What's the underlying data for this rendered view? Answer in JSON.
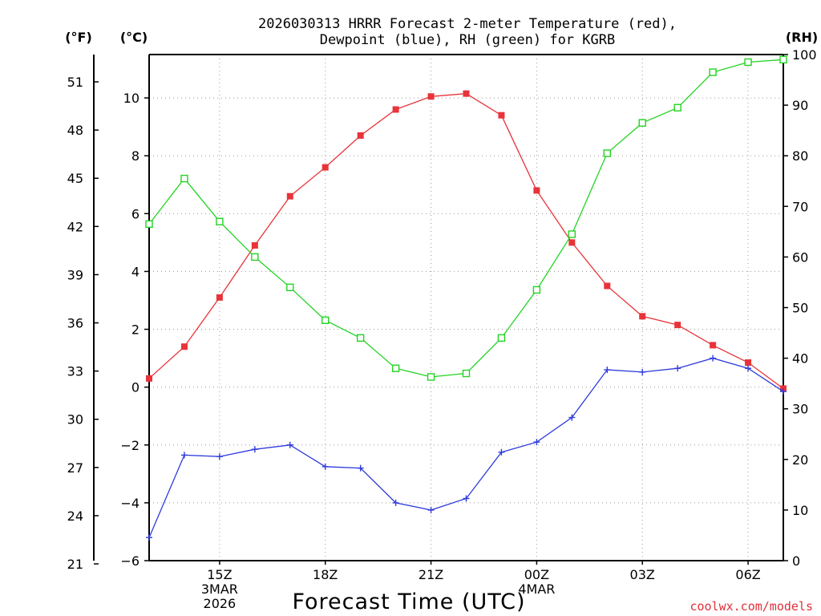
{
  "chart_data": {
    "type": "line",
    "title_lines": [
      "2026030313 HRRR Forecast 2-meter Temperature (red),",
      "Dewpoint (blue), RH (green) for KGRB"
    ],
    "xlabel": "Forecast Time (UTC)",
    "credit": "coolwx.com/models",
    "units": {
      "fahrenheit": "(°F)",
      "celsius": "(°C)",
      "rh": "(RH)"
    },
    "hours": [
      13,
      14,
      15,
      16,
      17,
      18,
      19,
      20,
      21,
      22,
      23,
      24,
      25,
      26,
      27,
      28,
      29,
      30,
      31
    ],
    "x_ticks": [
      {
        "hour": 15,
        "lines": [
          "15Z",
          "3MAR",
          "2026"
        ]
      },
      {
        "hour": 18,
        "lines": [
          "18Z"
        ]
      },
      {
        "hour": 21,
        "lines": [
          "21Z"
        ]
      },
      {
        "hour": 24,
        "lines": [
          "00Z",
          "4MAR"
        ]
      },
      {
        "hour": 27,
        "lines": [
          "03Z"
        ]
      },
      {
        "hour": 30,
        "lines": [
          "06Z"
        ]
      }
    ],
    "xlim": [
      13,
      31
    ],
    "celsius_axis": {
      "ylim": [
        -6,
        11.5
      ],
      "ticks": [
        "−6",
        "−4",
        "−2",
        "0",
        "2",
        "4",
        "6",
        "8",
        "10"
      ],
      "tick_values": [
        -6,
        -4,
        -2,
        0,
        2,
        4,
        6,
        8,
        10
      ]
    },
    "fahrenheit_axis": {
      "ticks": [
        "21",
        "24",
        "27",
        "30",
        "33",
        "36",
        "39",
        "42",
        "45",
        "48",
        "51"
      ],
      "tick_values": [
        21,
        24,
        27,
        30,
        33,
        36,
        39,
        42,
        45,
        48,
        51
      ]
    },
    "rh_axis": {
      "ylim": [
        0,
        100
      ],
      "ticks": [
        "0",
        "10",
        "20",
        "30",
        "40",
        "50",
        "60",
        "70",
        "80",
        "90",
        "100"
      ],
      "tick_values": [
        0,
        10,
        20,
        30,
        40,
        50,
        60,
        70,
        80,
        90,
        100
      ]
    },
    "series": [
      {
        "name": "Temperature",
        "axis": "celsius",
        "color": "#e8333a",
        "marker": "filled-square",
        "values": [
          0.3,
          1.4,
          3.1,
          4.9,
          6.6,
          7.6,
          8.7,
          9.6,
          10.05,
          10.15,
          9.4,
          6.8,
          5.0,
          3.5,
          2.45,
          2.15,
          1.45,
          0.85,
          -0.05
        ]
      },
      {
        "name": "Dewpoint",
        "axis": "celsius",
        "color": "#2e3bdb",
        "marker": "plus",
        "values": [
          -5.2,
          -2.35,
          -2.4,
          -2.15,
          -2.0,
          -2.75,
          -2.8,
          -4.0,
          -4.25,
          -3.85,
          -2.25,
          -1.9,
          -1.05,
          0.6,
          0.52,
          0.65,
          1.0,
          0.65,
          -0.15
        ]
      },
      {
        "name": "RH",
        "axis": "rh",
        "color": "#22d422",
        "marker": "open-square",
        "values": [
          66.5,
          75.5,
          67,
          60,
          54,
          47.5,
          44,
          38,
          36.3,
          37,
          44,
          53.5,
          64.5,
          80.5,
          86.5,
          89.5,
          96.5,
          98.5,
          99
        ]
      }
    ]
  }
}
